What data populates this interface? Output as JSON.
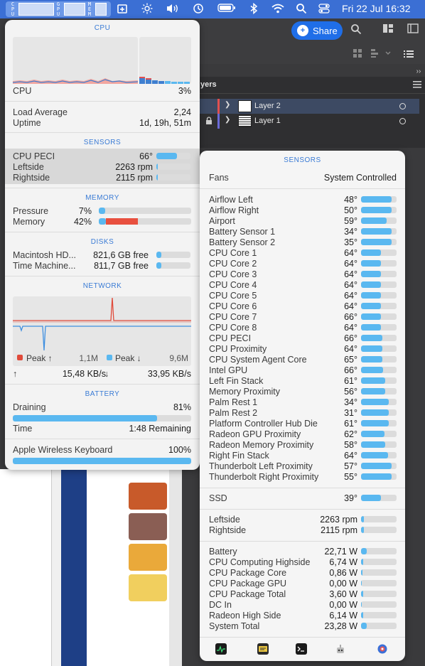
{
  "menubar": {
    "monitor_labels": [
      "C P U",
      "G P U",
      "M E M"
    ],
    "icons": [
      "stats-icon",
      "brightness-icon",
      "volume-icon",
      "time-machine-icon",
      "battery-icon",
      "bluetooth-icon",
      "wifi-icon",
      "search-icon",
      "control-center-icon"
    ],
    "datetime": "Fri 22 Jul  16:32"
  },
  "background_app": {
    "share_label": "Share",
    "layers_title": "yers",
    "layers": [
      {
        "name": "Layer 2",
        "color": "#e05050"
      },
      {
        "name": "Layer 1",
        "color": "#6b6bd8"
      }
    ],
    "swatches": [
      "#c85a2a",
      "#8a5e54",
      "#eaa93a",
      "#f1cf5e"
    ]
  },
  "stats": {
    "cpu": {
      "title": "CPU",
      "label": "CPU",
      "value": "3%",
      "load_label": "Load Average",
      "load_value": "2,24",
      "uptime_label": "Uptime",
      "uptime_value": "1d, 19h, 51m"
    },
    "sensors": {
      "title": "SENSORS",
      "rows": [
        {
          "label": "CPU PECI",
          "value": "66°",
          "fill": 0.6
        },
        {
          "label": "Leftside",
          "value": "2263 rpm",
          "fill": 0.05
        },
        {
          "label": "Rightside",
          "value": "2115 rpm",
          "fill": 0.05
        }
      ]
    },
    "memory": {
      "title": "MEMORY",
      "rows": [
        {
          "label": "Pressure",
          "value": "7%",
          "fill": 0.07
        },
        {
          "label": "Memory",
          "value": "42%",
          "fill": 0.42
        }
      ]
    },
    "disks": {
      "title": "DISKS",
      "rows": [
        {
          "label": "Macintosh HD...",
          "value": "821,6 GB free",
          "fill": 0.15
        },
        {
          "label": "Time Machine...",
          "value": "811,7 GB free",
          "fill": 0.15
        }
      ]
    },
    "network": {
      "title": "NETWORK",
      "peak_up_label": "Peak ↑",
      "peak_up_value": "1,1M",
      "peak_down_label": "Peak ↓",
      "peak_down_value": "9,6M",
      "upload": "15,48 KB/s",
      "download": "33,95 KB/s",
      "up_arrow": "↑",
      "down_arrow": "↓"
    },
    "battery": {
      "title": "BATTERY",
      "status_label": "Draining",
      "percent": "81%",
      "fill": 0.81,
      "time_label": "Time",
      "time_value": "1:48 Remaining",
      "device_label": "Apple Wireless Keyboard",
      "device_value": "100%",
      "device_fill": 1.0
    }
  },
  "sensors_panel": {
    "title": "SENSORS",
    "fans_label": "Fans",
    "fans_value": "System Controlled",
    "temps": [
      {
        "label": "Airflow Left",
        "value": "48°",
        "fill": 0.85
      },
      {
        "label": "Airflow Right",
        "value": "50°",
        "fill": 0.85
      },
      {
        "label": "Airport",
        "value": "59°",
        "fill": 0.72
      },
      {
        "label": "Battery Sensor 1",
        "value": "34°",
        "fill": 0.85
      },
      {
        "label": "Battery Sensor 2",
        "value": "35°",
        "fill": 0.85
      },
      {
        "label": "CPU Core 1",
        "value": "64°",
        "fill": 0.55
      },
      {
        "label": "CPU Core 2",
        "value": "64°",
        "fill": 0.55
      },
      {
        "label": "CPU Core 3",
        "value": "64°",
        "fill": 0.55
      },
      {
        "label": "CPU Core 4",
        "value": "64°",
        "fill": 0.55
      },
      {
        "label": "CPU Core 5",
        "value": "64°",
        "fill": 0.55
      },
      {
        "label": "CPU Core 6",
        "value": "64°",
        "fill": 0.55
      },
      {
        "label": "CPU Core 7",
        "value": "66°",
        "fill": 0.55
      },
      {
        "label": "CPU Core 8",
        "value": "64°",
        "fill": 0.55
      },
      {
        "label": "CPU PECI",
        "value": "66°",
        "fill": 0.6
      },
      {
        "label": "CPU Proximity",
        "value": "64°",
        "fill": 0.6
      },
      {
        "label": "CPU System Agent Core",
        "value": "65°",
        "fill": 0.6
      },
      {
        "label": "Intel GPU",
        "value": "66°",
        "fill": 0.62
      },
      {
        "label": "Left Fin Stack",
        "value": "61°",
        "fill": 0.68
      },
      {
        "label": "Memory Proximity",
        "value": "56°",
        "fill": 0.68
      },
      {
        "label": "Palm Rest 1",
        "value": "34°",
        "fill": 0.78
      },
      {
        "label": "Palm Rest 2",
        "value": "31°",
        "fill": 0.78
      },
      {
        "label": "Platform Controller Hub Die",
        "value": "61°",
        "fill": 0.78
      },
      {
        "label": "Radeon GPU Proximity",
        "value": "62°",
        "fill": 0.65
      },
      {
        "label": "Radeon Memory Proximity",
        "value": "58°",
        "fill": 0.68
      },
      {
        "label": "Right Fin Stack",
        "value": "64°",
        "fill": 0.75
      },
      {
        "label": "Thunderbolt Left Proximity",
        "value": "57°",
        "fill": 0.85
      },
      {
        "label": "Thunderbolt Right Proximity",
        "value": "55°",
        "fill": 0.85
      }
    ],
    "ssd": {
      "label": "SSD",
      "value": "39°",
      "fill": 0.55
    },
    "fans": [
      {
        "label": "Leftside",
        "value": "2263 rpm",
        "fill": 0.07
      },
      {
        "label": "Rightside",
        "value": "2115 rpm",
        "fill": 0.07
      }
    ],
    "power": [
      {
        "label": "Battery",
        "value": "22,71 W",
        "fill": 0.15
      },
      {
        "label": "CPU Computing Highside",
        "value": "6,74 W",
        "fill": 0.05
      },
      {
        "label": "CPU Package Core",
        "value": "0,86 W",
        "fill": 0.03
      },
      {
        "label": "CPU Package GPU",
        "value": "0,00 W",
        "fill": 0.02
      },
      {
        "label": "CPU Package Total",
        "value": "3,60 W",
        "fill": 0.05
      },
      {
        "label": "DC In",
        "value": "0,00 W",
        "fill": 0.02
      },
      {
        "label": "Radeon High Side",
        "value": "6,14 W",
        "fill": 0.05
      },
      {
        "label": "System Total",
        "value": "23,28 W",
        "fill": 0.15
      }
    ],
    "bottom_icons": [
      "activity-monitor-icon",
      "console-icon",
      "terminal-icon",
      "robot-icon",
      "settings-icon"
    ]
  }
}
